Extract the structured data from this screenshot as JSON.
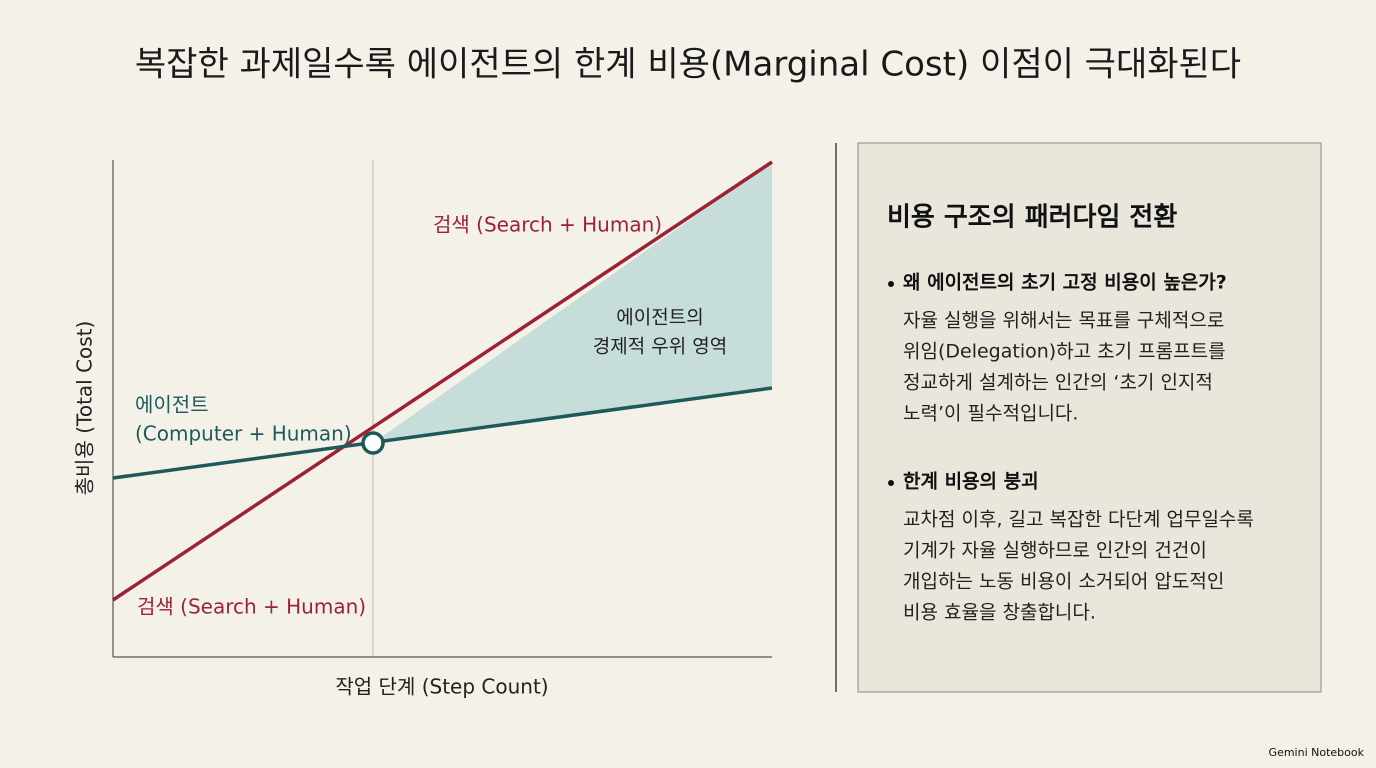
{
  "title": "복잡한 과제일수록 에이전트의 한계 비용(Marginal Cost) 이점이 극대화된다",
  "chart": {
    "y_axis_label": "총비용 (Total Cost)",
    "x_axis_label": "작업 단계 (Step Count)",
    "agent_label": [
      "에이전트",
      "(Computer + Human)"
    ],
    "search_label_top": "검색 (Search + Human)",
    "search_label_bottom": "검색 (Search + Human)",
    "area_label": [
      "에이전트의",
      "경제적 우위 영역"
    ]
  },
  "panel": {
    "heading": "비용 구조의 패러다임 전환",
    "bullets": [
      {
        "title": "왜 에이전트의 초기 고정 비용이 높은가?",
        "lines": [
          "자율 실행을 위해서는 목표를 구체적으로",
          "위임(Delegation)하고 초기 프롬프트를",
          "정교하게 설계하는 인간의 ‘초기 인지적",
          "노력’이 필수적입니다."
        ]
      },
      {
        "title": "한계 비용의 붕괴",
        "lines": [
          "교차점 이후, 길고 복잡한 다단계 업무일수록",
          "기계가 자율 실행하므로 인간의 건건이",
          "개입하는 노동 비용이 소거되어 압도적인",
          "비용 효율을 창출합니다."
        ]
      }
    ]
  },
  "footer": "Gemini Notebook"
}
